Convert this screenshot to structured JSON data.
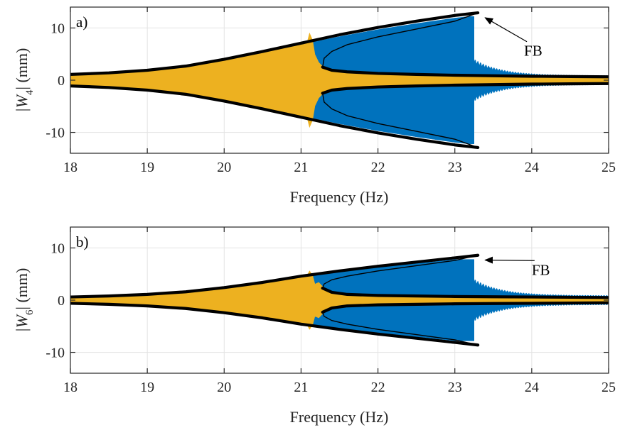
{
  "chart_data": [
    {
      "type": "line",
      "panel_label": "a)",
      "xlabel": "Frequency (Hz)",
      "ylabel": "|W4| (mm)",
      "ylabel_base": "|W",
      "ylabel_sub": "4",
      "ylabel_tail": "| (mm)",
      "xlim": [
        18,
        25
      ],
      "ylim": [
        -14,
        14
      ],
      "xticks": [
        18,
        19,
        20,
        21,
        22,
        23,
        24,
        25
      ],
      "yticks": [
        -10,
        0,
        10
      ],
      "ytick_labels": [
        "-10",
        "0",
        "10"
      ],
      "grid": true,
      "annotation": {
        "text": "FB",
        "arrow_to": [
          23.3,
          12.8
        ],
        "text_at": [
          23.9,
          5.2
        ]
      },
      "colors": {
        "up_sweep": "#EDB120",
        "down_sweep": "#0072BD",
        "backbone": "#000000"
      },
      "down_sweep_peak": {
        "freq": 23.25,
        "amp": 12.2
      },
      "up_sweep_jump": {
        "freq": 21.15,
        "amp": 9.0
      },
      "stable_upper": {
        "x": [
          18.0,
          18.5,
          19.0,
          19.5,
          20.0,
          20.5,
          21.0,
          21.5,
          22.0,
          22.5,
          23.0,
          23.3
        ],
        "y": [
          1.1,
          1.4,
          1.9,
          2.7,
          4.0,
          5.5,
          7.1,
          8.7,
          10.1,
          11.3,
          12.4,
          12.9
        ]
      },
      "unstable_branch": {
        "x": [
          23.3,
          23.0,
          22.5,
          22.0,
          21.6,
          21.4,
          21.3,
          21.28
        ],
        "y": [
          12.9,
          11.3,
          9.8,
          8.3,
          6.8,
          5.5,
          4.2,
          2.5
        ]
      },
      "lower_stable_branch": {
        "x": [
          21.28,
          21.4,
          21.6,
          22.0,
          22.5,
          23.0,
          23.5,
          24.0,
          24.5,
          25.0
        ],
        "y": [
          2.5,
          1.9,
          1.6,
          1.3,
          1.1,
          0.95,
          0.85,
          0.75,
          0.7,
          0.65
        ]
      }
    },
    {
      "type": "line",
      "panel_label": "b)",
      "xlabel": "Frequency (Hz)",
      "ylabel": "|W6| (mm)",
      "ylabel_base": "|W",
      "ylabel_sub": "6",
      "ylabel_tail": "| (mm)",
      "xlim": [
        18,
        25
      ],
      "ylim": [
        -14,
        14
      ],
      "xticks": [
        18,
        19,
        20,
        21,
        22,
        23,
        24,
        25
      ],
      "yticks": [
        -10,
        0,
        10
      ],
      "ytick_labels": [
        "-10",
        "0",
        "10"
      ],
      "grid": true,
      "annotation": {
        "text": "FB",
        "arrow_to": [
          23.3,
          8.5
        ],
        "text_at": [
          24.0,
          5.4
        ]
      },
      "colors": {
        "up_sweep": "#EDB120",
        "down_sweep": "#0072BD",
        "backbone": "#000000"
      },
      "down_sweep_peak": {
        "freq": 23.25,
        "amp": 7.8
      },
      "up_sweep_jump": {
        "freq": 21.15,
        "amp": 5.6
      },
      "stable_upper": {
        "x": [
          18.0,
          18.5,
          19.0,
          19.5,
          20.0,
          20.5,
          21.0,
          21.5,
          22.0,
          22.5,
          23.0,
          23.3
        ],
        "y": [
          0.6,
          0.8,
          1.1,
          1.6,
          2.4,
          3.4,
          4.6,
          5.6,
          6.5,
          7.3,
          8.1,
          8.6
        ]
      },
      "unstable_branch": {
        "x": [
          23.3,
          23.0,
          22.5,
          22.0,
          21.6,
          21.4,
          21.3,
          21.28
        ],
        "y": [
          8.6,
          7.6,
          6.6,
          5.6,
          4.6,
          3.9,
          3.1,
          2.3
        ]
      },
      "lower_stable_branch": {
        "x": [
          21.28,
          21.4,
          21.6,
          22.0,
          22.5,
          23.0,
          23.5,
          24.0,
          24.5,
          25.0
        ],
        "y": [
          2.3,
          1.5,
          1.1,
          0.9,
          0.8,
          0.7,
          0.65,
          0.6,
          0.55,
          0.5
        ]
      }
    }
  ]
}
